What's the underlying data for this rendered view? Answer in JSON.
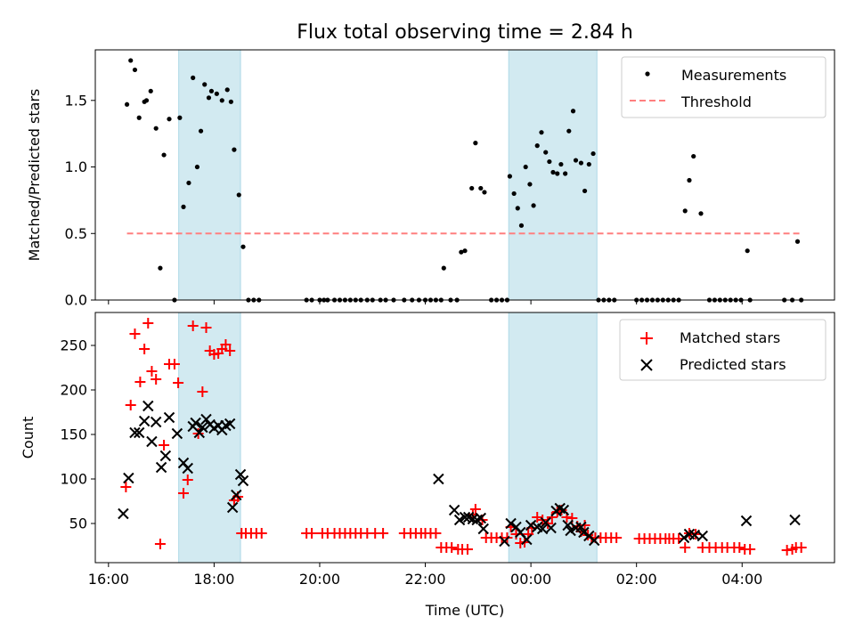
{
  "chart_data": {
    "type": "scatter",
    "title": "Flux total observing time = 2.84 h",
    "xlabel": "Time (UTC)",
    "x_units": "hours since 16:00 UTC",
    "xlim": [
      -0.25,
      13.75
    ],
    "xticks": [
      {
        "v": 0,
        "label": "16:00"
      },
      {
        "v": 2,
        "label": "18:00"
      },
      {
        "v": 4,
        "label": "20:00"
      },
      {
        "v": 6,
        "label": "22:00"
      },
      {
        "v": 8,
        "label": "00:00"
      },
      {
        "v": 10,
        "label": "02:00"
      },
      {
        "v": 12,
        "label": "04:00"
      }
    ],
    "shaded_intervals": [
      [
        1.33,
        2.5
      ],
      [
        7.58,
        9.25
      ]
    ],
    "shade_color": "#add8e6",
    "top": {
      "ylabel": "Matched/Predicted stars",
      "ylim": [
        0,
        1.88
      ],
      "yticks": [
        {
          "v": 0,
          "label": "0.0"
        },
        {
          "v": 0.5,
          "label": "0.5"
        },
        {
          "v": 1,
          "label": "1.0"
        },
        {
          "v": 1.5,
          "label": "1.5"
        }
      ],
      "threshold": {
        "name": "Threshold",
        "value": 0.5,
        "x_range": [
          0.35,
          13.1
        ],
        "color": "#ff7f7f"
      },
      "measurements": {
        "name": "Measurements",
        "color": "#000000",
        "points": [
          [
            0.35,
            1.47
          ],
          [
            0.42,
            1.8
          ],
          [
            0.5,
            1.73
          ],
          [
            0.58,
            1.37
          ],
          [
            0.68,
            1.49
          ],
          [
            0.72,
            1.5
          ],
          [
            0.8,
            1.57
          ],
          [
            0.9,
            1.29
          ],
          [
            0.98,
            0.24
          ],
          [
            1.05,
            1.09
          ],
          [
            1.15,
            1.36
          ],
          [
            1.25,
            0
          ],
          [
            1.35,
            1.37
          ],
          [
            1.42,
            0.7
          ],
          [
            1.52,
            0.88
          ],
          [
            1.6,
            1.67
          ],
          [
            1.68,
            1.0
          ],
          [
            1.75,
            1.27
          ],
          [
            1.82,
            1.62
          ],
          [
            1.9,
            1.52
          ],
          [
            1.95,
            1.57
          ],
          [
            2.05,
            1.55
          ],
          [
            2.15,
            1.5
          ],
          [
            2.25,
            1.58
          ],
          [
            2.32,
            1.49
          ],
          [
            2.38,
            1.13
          ],
          [
            2.47,
            0.79
          ],
          [
            2.55,
            0.4
          ],
          [
            2.65,
            0
          ],
          [
            2.75,
            0
          ],
          [
            2.85,
            0
          ],
          [
            3.75,
            0
          ],
          [
            3.85,
            0
          ],
          [
            4.0,
            0
          ],
          [
            4.08,
            0
          ],
          [
            4.15,
            0
          ],
          [
            4.28,
            0
          ],
          [
            4.38,
            0
          ],
          [
            4.48,
            0
          ],
          [
            4.58,
            0
          ],
          [
            4.68,
            0
          ],
          [
            4.78,
            0
          ],
          [
            4.9,
            0
          ],
          [
            5.0,
            0
          ],
          [
            5.15,
            0
          ],
          [
            5.25,
            0
          ],
          [
            5.4,
            0
          ],
          [
            5.6,
            0
          ],
          [
            5.75,
            0
          ],
          [
            5.88,
            0
          ],
          [
            6.0,
            0
          ],
          [
            6.1,
            0
          ],
          [
            6.2,
            0
          ],
          [
            6.3,
            0
          ],
          [
            6.35,
            0.24
          ],
          [
            6.48,
            0
          ],
          [
            6.6,
            0
          ],
          [
            6.68,
            0.36
          ],
          [
            6.75,
            0.37
          ],
          [
            6.88,
            0.84
          ],
          [
            6.95,
            1.18
          ],
          [
            7.05,
            0.84
          ],
          [
            7.12,
            0.81
          ],
          [
            7.25,
            0
          ],
          [
            7.35,
            0
          ],
          [
            7.45,
            0
          ],
          [
            7.55,
            0
          ],
          [
            7.6,
            0.93
          ],
          [
            7.68,
            0.8
          ],
          [
            7.75,
            0.69
          ],
          [
            7.82,
            0.56
          ],
          [
            7.9,
            1.0
          ],
          [
            7.98,
            0.87
          ],
          [
            8.05,
            0.71
          ],
          [
            8.12,
            1.16
          ],
          [
            8.2,
            1.26
          ],
          [
            8.28,
            1.11
          ],
          [
            8.35,
            1.04
          ],
          [
            8.42,
            0.96
          ],
          [
            8.5,
            0.95
          ],
          [
            8.57,
            1.02
          ],
          [
            8.65,
            0.95
          ],
          [
            8.72,
            1.27
          ],
          [
            8.8,
            1.42
          ],
          [
            8.85,
            1.05
          ],
          [
            8.95,
            1.03
          ],
          [
            9.02,
            0.82
          ],
          [
            9.1,
            1.02
          ],
          [
            9.18,
            1.1
          ],
          [
            9.28,
            0
          ],
          [
            9.38,
            0
          ],
          [
            9.48,
            0
          ],
          [
            9.58,
            0
          ],
          [
            10.0,
            0
          ],
          [
            10.1,
            0
          ],
          [
            10.2,
            0
          ],
          [
            10.3,
            0
          ],
          [
            10.4,
            0
          ],
          [
            10.5,
            0
          ],
          [
            10.6,
            0
          ],
          [
            10.7,
            0
          ],
          [
            10.8,
            0
          ],
          [
            10.92,
            0.67
          ],
          [
            11.0,
            0.9
          ],
          [
            11.08,
            1.08
          ],
          [
            11.22,
            0.65
          ],
          [
            11.38,
            0
          ],
          [
            11.48,
            0
          ],
          [
            11.58,
            0
          ],
          [
            11.68,
            0
          ],
          [
            11.78,
            0
          ],
          [
            11.88,
            0
          ],
          [
            11.98,
            0
          ],
          [
            12.1,
            0.37
          ],
          [
            12.15,
            0
          ],
          [
            12.8,
            0
          ],
          [
            12.95,
            0
          ],
          [
            13.05,
            0.44
          ],
          [
            13.12,
            0
          ]
        ]
      }
    },
    "bottom": {
      "ylabel": "Count",
      "ylim": [
        6,
        287
      ],
      "yticks": [
        {
          "v": 50,
          "label": "50"
        },
        {
          "v": 100,
          "label": "100"
        },
        {
          "v": 150,
          "label": "150"
        },
        {
          "v": 200,
          "label": "200"
        },
        {
          "v": 250,
          "label": "250"
        }
      ],
      "matched": {
        "name": "Matched stars",
        "color": "#ff0000",
        "points": [
          [
            0.33,
            91
          ],
          [
            0.42,
            183
          ],
          [
            0.5,
            263
          ],
          [
            0.6,
            209
          ],
          [
            0.68,
            246
          ],
          [
            0.75,
            275
          ],
          [
            0.82,
            221
          ],
          [
            0.9,
            212
          ],
          [
            0.98,
            27
          ],
          [
            1.05,
            138
          ],
          [
            1.15,
            229
          ],
          [
            1.25,
            229
          ],
          [
            1.32,
            208
          ],
          [
            1.42,
            84
          ],
          [
            1.5,
            99
          ],
          [
            1.6,
            272
          ],
          [
            1.7,
            151
          ],
          [
            1.78,
            198
          ],
          [
            1.85,
            270
          ],
          [
            1.92,
            244
          ],
          [
            2.0,
            240
          ],
          [
            2.08,
            241
          ],
          [
            2.15,
            246
          ],
          [
            2.22,
            251
          ],
          [
            2.3,
            244
          ],
          [
            2.38,
            76
          ],
          [
            2.45,
            80
          ],
          [
            2.52,
            39
          ],
          [
            2.6,
            39
          ],
          [
            2.7,
            39
          ],
          [
            2.8,
            39
          ],
          [
            2.9,
            39
          ],
          [
            3.75,
            39
          ],
          [
            3.85,
            39
          ],
          [
            4.05,
            39
          ],
          [
            4.15,
            39
          ],
          [
            4.28,
            39
          ],
          [
            4.38,
            39
          ],
          [
            4.48,
            39
          ],
          [
            4.58,
            39
          ],
          [
            4.68,
            39
          ],
          [
            4.78,
            39
          ],
          [
            4.9,
            39
          ],
          [
            5.05,
            39
          ],
          [
            5.2,
            39
          ],
          [
            5.6,
            39
          ],
          [
            5.72,
            39
          ],
          [
            5.82,
            39
          ],
          [
            5.92,
            39
          ],
          [
            6.0,
            39
          ],
          [
            6.1,
            39
          ],
          [
            6.2,
            39
          ],
          [
            6.3,
            23
          ],
          [
            6.4,
            23
          ],
          [
            6.5,
            23
          ],
          [
            6.62,
            21
          ],
          [
            6.7,
            21
          ],
          [
            6.8,
            21
          ],
          [
            6.9,
            60
          ],
          [
            6.95,
            66
          ],
          [
            7.08,
            54
          ],
          [
            7.15,
            34
          ],
          [
            7.25,
            34
          ],
          [
            7.35,
            34
          ],
          [
            7.45,
            34
          ],
          [
            7.55,
            34
          ],
          [
            7.62,
            46
          ],
          [
            7.72,
            38
          ],
          [
            7.8,
            28
          ],
          [
            7.88,
            29
          ],
          [
            7.95,
            38
          ],
          [
            8.02,
            45
          ],
          [
            8.12,
            57
          ],
          [
            8.22,
            54
          ],
          [
            8.32,
            50
          ],
          [
            8.4,
            57
          ],
          [
            8.5,
            63
          ],
          [
            8.58,
            65
          ],
          [
            8.68,
            57
          ],
          [
            8.78,
            56
          ],
          [
            8.88,
            47
          ],
          [
            8.95,
            41
          ],
          [
            9.02,
            48
          ],
          [
            9.08,
            37
          ],
          [
            9.15,
            34
          ],
          [
            9.22,
            34
          ],
          [
            9.32,
            34
          ],
          [
            9.42,
            34
          ],
          [
            9.52,
            34
          ],
          [
            9.62,
            34
          ],
          [
            10.05,
            33
          ],
          [
            10.15,
            33
          ],
          [
            10.25,
            33
          ],
          [
            10.35,
            33
          ],
          [
            10.45,
            33
          ],
          [
            10.55,
            33
          ],
          [
            10.62,
            33
          ],
          [
            10.7,
            33
          ],
          [
            10.8,
            33
          ],
          [
            10.92,
            23
          ],
          [
            11.0,
            39
          ],
          [
            11.12,
            38
          ],
          [
            11.25,
            23
          ],
          [
            11.38,
            23
          ],
          [
            11.5,
            23
          ],
          [
            11.62,
            23
          ],
          [
            11.72,
            23
          ],
          [
            11.85,
            23
          ],
          [
            11.95,
            23
          ],
          [
            12.05,
            21
          ],
          [
            12.15,
            21
          ],
          [
            12.85,
            20
          ],
          [
            12.95,
            21
          ],
          [
            13.02,
            23
          ],
          [
            13.12,
            23
          ]
        ]
      },
      "predicted": {
        "name": "Predicted stars",
        "color": "#000000",
        "points": [
          [
            0.28,
            61
          ],
          [
            0.38,
            101
          ],
          [
            0.5,
            152
          ],
          [
            0.58,
            152
          ],
          [
            0.68,
            165
          ],
          [
            0.75,
            182
          ],
          [
            0.82,
            142
          ],
          [
            0.9,
            164
          ],
          [
            1.0,
            113
          ],
          [
            1.08,
            126
          ],
          [
            1.15,
            169
          ],
          [
            1.3,
            151
          ],
          [
            1.42,
            118
          ],
          [
            1.5,
            112
          ],
          [
            1.6,
            159
          ],
          [
            1.65,
            163
          ],
          [
            1.72,
            152
          ],
          [
            1.78,
            158
          ],
          [
            1.85,
            167
          ],
          [
            1.92,
            161
          ],
          [
            2.0,
            157
          ],
          [
            2.08,
            160
          ],
          [
            2.15,
            155
          ],
          [
            2.22,
            160
          ],
          [
            2.3,
            162
          ],
          [
            2.35,
            68
          ],
          [
            2.42,
            82
          ],
          [
            2.5,
            105
          ],
          [
            2.55,
            98
          ],
          [
            6.25,
            100
          ],
          [
            6.55,
            65
          ],
          [
            6.65,
            54
          ],
          [
            6.75,
            57
          ],
          [
            6.82,
            57
          ],
          [
            6.9,
            55
          ],
          [
            6.98,
            54
          ],
          [
            7.05,
            56
          ],
          [
            7.1,
            44
          ],
          [
            7.5,
            30
          ],
          [
            7.62,
            50
          ],
          [
            7.72,
            46
          ],
          [
            7.8,
            40
          ],
          [
            7.92,
            32
          ],
          [
            8.0,
            48
          ],
          [
            8.12,
            46
          ],
          [
            8.22,
            44
          ],
          [
            8.28,
            51
          ],
          [
            8.38,
            45
          ],
          [
            8.48,
            64
          ],
          [
            8.55,
            67
          ],
          [
            8.62,
            65
          ],
          [
            8.7,
            48
          ],
          [
            8.75,
            42
          ],
          [
            8.85,
            45
          ],
          [
            8.95,
            46
          ],
          [
            9.0,
            40
          ],
          [
            9.1,
            36
          ],
          [
            9.2,
            31
          ],
          [
            10.9,
            34
          ],
          [
            11.0,
            38
          ],
          [
            11.1,
            37
          ],
          [
            11.25,
            36
          ],
          [
            12.08,
            53
          ],
          [
            13.0,
            54
          ]
        ]
      }
    }
  }
}
